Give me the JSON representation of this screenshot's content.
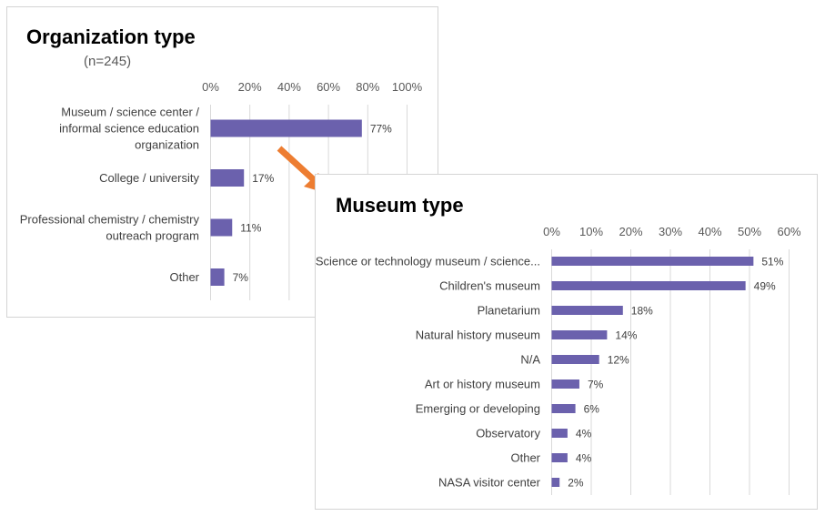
{
  "chart_data": [
    {
      "type": "bar",
      "orientation": "horizontal",
      "title": "Organization type",
      "subtitle": "(n=245)",
      "categories": [
        [
          "Museum / science center /",
          "informal science education",
          "organization"
        ],
        [
          "College / university"
        ],
        [
          "Professional chemistry / chemistry",
          "outreach program"
        ],
        [
          "Other"
        ]
      ],
      "values": [
        77,
        17,
        11,
        7
      ],
      "value_labels": [
        "77%",
        "17%",
        "11%",
        "7%"
      ],
      "xlim": [
        0,
        100
      ],
      "xticks": [
        0,
        20,
        40,
        60,
        80,
        100
      ],
      "xtick_labels": [
        "0%",
        "20%",
        "40%",
        "60%",
        "80%",
        "100%"
      ],
      "axis_position": "top",
      "grid": true,
      "bar_color": "#6b61ad"
    },
    {
      "type": "bar",
      "orientation": "horizontal",
      "title": "Museum type",
      "categories": [
        [
          "Science or technology museum / science..."
        ],
        [
          "Children's museum"
        ],
        [
          "Planetarium"
        ],
        [
          "Natural history museum"
        ],
        [
          "N/A"
        ],
        [
          "Art or history museum"
        ],
        [
          "Emerging or developing"
        ],
        [
          "Observatory"
        ],
        [
          "Other"
        ],
        [
          "NASA visitor center"
        ]
      ],
      "values": [
        51,
        49,
        18,
        14,
        12,
        7,
        6,
        4,
        4,
        2
      ],
      "value_labels": [
        "51%",
        "49%",
        "18%",
        "14%",
        "12%",
        "7%",
        "6%",
        "4%",
        "4%",
        "2%"
      ],
      "xlim": [
        0,
        60
      ],
      "xticks": [
        0,
        10,
        20,
        30,
        40,
        50,
        60
      ],
      "xtick_labels": [
        "0%",
        "10%",
        "20%",
        "30%",
        "40%",
        "50%",
        "60%"
      ],
      "axis_position": "top",
      "grid": true,
      "bar_color": "#6b61ad"
    }
  ],
  "colors": {
    "bar": "#6b61ad",
    "arrow": "#ed7d31",
    "grid": "#d9d9d9",
    "panel_border": "#d4d4d4"
  },
  "arrow": {
    "icon": "arrow-icon",
    "direction": "down-right"
  }
}
